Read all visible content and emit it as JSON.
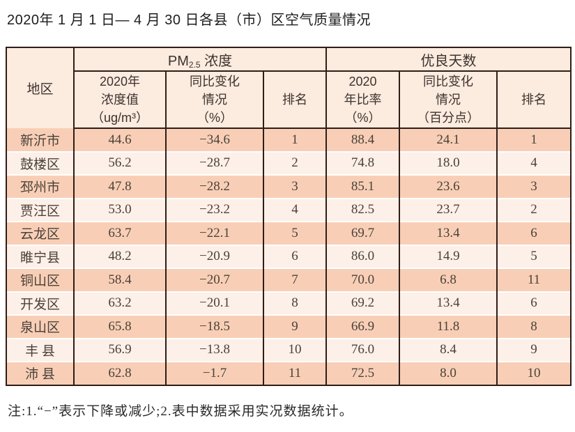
{
  "title": "2020年 1 月 1 日— 4 月 30 日各县（市）区空气质量情况",
  "table": {
    "region_header": "地区",
    "pm25_group": {
      "prefix": "PM",
      "sub": "2.5",
      "suffix": " 浓度"
    },
    "good_days_group": "优良天数",
    "sub_headers": {
      "pm_value": "2020年\n浓度值\n（ug/m³）",
      "pm_change": "同比变化\n情况\n（%）",
      "pm_rank": "排名",
      "ratio": "2020\n年比率\n（%）",
      "ratio_change": "同比变化\n情况\n（百分点）",
      "days_rank": "排名"
    },
    "columns_order": [
      "region",
      "pm_value",
      "pm_change",
      "pm_rank",
      "ratio",
      "ratio_change",
      "days_rank"
    ],
    "rows": [
      {
        "region": "新沂市",
        "pm_value": "44.6",
        "pm_change": "−34.6",
        "pm_rank": "1",
        "ratio": "88.4",
        "ratio_change": "24.1",
        "days_rank": "1"
      },
      {
        "region": "鼓楼区",
        "pm_value": "56.2",
        "pm_change": "−28.7",
        "pm_rank": "2",
        "ratio": "74.8",
        "ratio_change": "18.0",
        "days_rank": "4"
      },
      {
        "region": "邳州市",
        "pm_value": "47.8",
        "pm_change": "−28.2",
        "pm_rank": "3",
        "ratio": "85.1",
        "ratio_change": "23.6",
        "days_rank": "3"
      },
      {
        "region": "贾汪区",
        "pm_value": "53.0",
        "pm_change": "−23.2",
        "pm_rank": "4",
        "ratio": "82.5",
        "ratio_change": "23.7",
        "days_rank": "2"
      },
      {
        "region": "云龙区",
        "pm_value": "63.7",
        "pm_change": "−22.1",
        "pm_rank": "5",
        "ratio": "69.7",
        "ratio_change": "13.4",
        "days_rank": "6"
      },
      {
        "region": "睢宁县",
        "pm_value": "48.2",
        "pm_change": "−20.9",
        "pm_rank": "6",
        "ratio": "86.0",
        "ratio_change": "14.9",
        "days_rank": "5"
      },
      {
        "region": "铜山区",
        "pm_value": "58.4",
        "pm_change": "−20.7",
        "pm_rank": "7",
        "ratio": "70.0",
        "ratio_change": "6.8",
        "days_rank": "11"
      },
      {
        "region": "开发区",
        "pm_value": "63.2",
        "pm_change": "−20.1",
        "pm_rank": "8",
        "ratio": "69.2",
        "ratio_change": "13.4",
        "days_rank": "6"
      },
      {
        "region": "泉山区",
        "pm_value": "65.8",
        "pm_change": "−18.5",
        "pm_rank": "9",
        "ratio": "66.9",
        "ratio_change": "11.8",
        "days_rank": "8"
      },
      {
        "region": "丰 县",
        "pm_value": "56.9",
        "pm_change": "−13.8",
        "pm_rank": "10",
        "ratio": "76.0",
        "ratio_change": "8.4",
        "days_rank": "9"
      },
      {
        "region": "沛 县",
        "pm_value": "62.8",
        "pm_change": "−1.7",
        "pm_rank": "11",
        "ratio": "72.5",
        "ratio_change": "8.0",
        "days_rank": "10"
      }
    ]
  },
  "note": "注:1.“−”表示下降或减少;2.表中数据采用实况数据统计。",
  "colors": {
    "border": "#2f1d17",
    "header_bg": "#fcebdf",
    "row_odd_bg": "#f8cfb6",
    "row_even_bg": "#fdf0e8"
  }
}
